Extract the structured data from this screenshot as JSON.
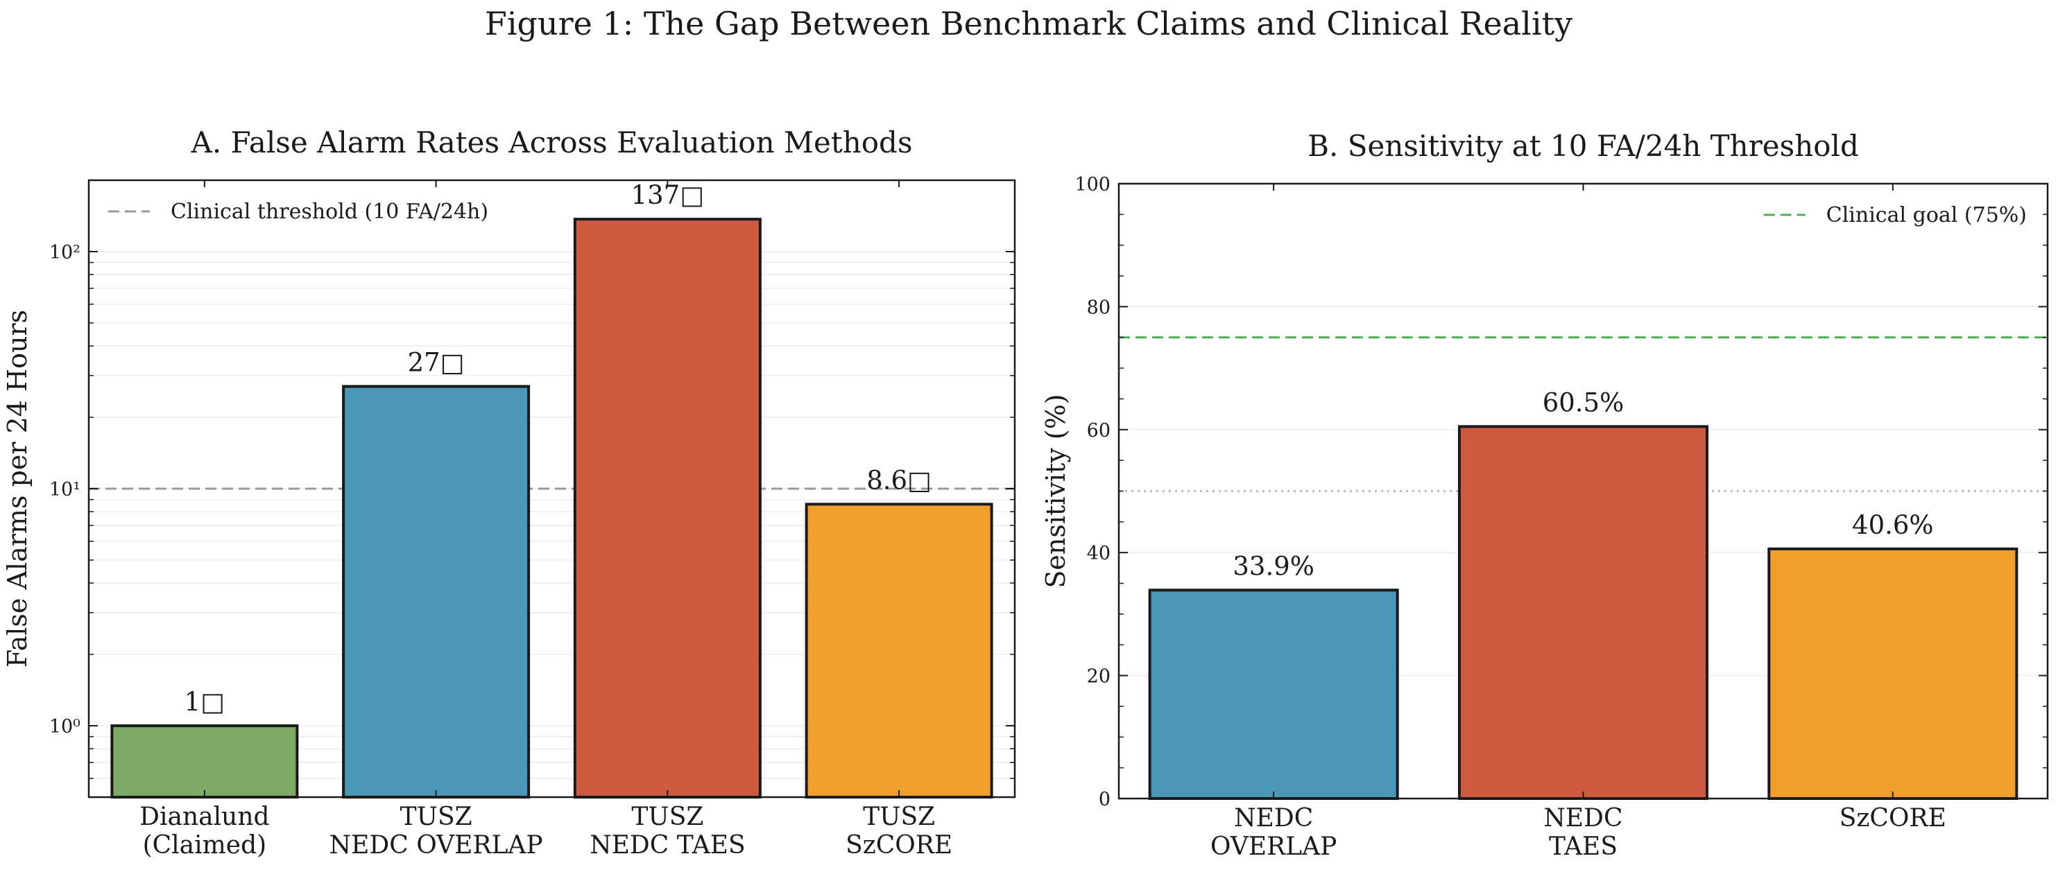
{
  "figure_title": "Figure 1: The Gap Between Benchmark Claims and Clinical Reality",
  "chart_data": [
    {
      "type": "bar",
      "title": "A. False Alarm Rates Across Evaluation Methods",
      "xlabel": "",
      "ylabel": "False Alarms per 24 Hours",
      "yscale": "log",
      "ylim": [
        0.5,
        200
      ],
      "y_ticks": [
        {
          "value": 1,
          "label": "10⁰"
        },
        {
          "value": 10,
          "label": "10¹"
        },
        {
          "value": 100,
          "label": "10²"
        }
      ],
      "categories": [
        [
          "Dianalund",
          "(Claimed)"
        ],
        [
          "TUSZ",
          "NEDC OVERLAP"
        ],
        [
          "TUSZ",
          "NEDC TAES"
        ],
        [
          "TUSZ",
          "SzCORE"
        ]
      ],
      "values": [
        1,
        27,
        137,
        8.6
      ],
      "data_labels": [
        "1□",
        "27□",
        "137□",
        "8.6□"
      ],
      "colors": [
        "#7faa66",
        "#4b97b8",
        "#cd5a3e",
        "#f0a02a"
      ],
      "reference_line": {
        "value": 10,
        "label": "Clinical threshold (10 FA/24h)",
        "color": "#999999",
        "style": "dashed"
      },
      "legend_position": "top-left",
      "grid": true
    },
    {
      "type": "bar",
      "title": "B. Sensitivity at 10 FA/24h Threshold",
      "xlabel": "",
      "ylabel": "Sensitivity (%)",
      "yscale": "linear",
      "ylim": [
        0,
        100
      ],
      "y_ticks": [
        {
          "value": 0,
          "label": "0"
        },
        {
          "value": 20,
          "label": "20"
        },
        {
          "value": 40,
          "label": "40"
        },
        {
          "value": 60,
          "label": "60"
        },
        {
          "value": 80,
          "label": "80"
        },
        {
          "value": 100,
          "label": "100"
        }
      ],
      "categories": [
        [
          "NEDC",
          "OVERLAP"
        ],
        [
          "NEDC",
          "TAES"
        ],
        [
          "SzCORE"
        ]
      ],
      "values": [
        33.9,
        60.5,
        40.6
      ],
      "data_labels": [
        "33.9%",
        "60.5%",
        "40.6%"
      ],
      "colors": [
        "#4b97b8",
        "#cd5a3e",
        "#f0a02a"
      ],
      "reference_line": {
        "value": 75,
        "label": "Clinical goal (75%)",
        "color": "#4caf50",
        "style": "dashed"
      },
      "secondary_line": {
        "value": 50,
        "color": "#bbbbbb",
        "style": "dotted"
      },
      "legend_position": "top-right",
      "grid": true
    }
  ]
}
